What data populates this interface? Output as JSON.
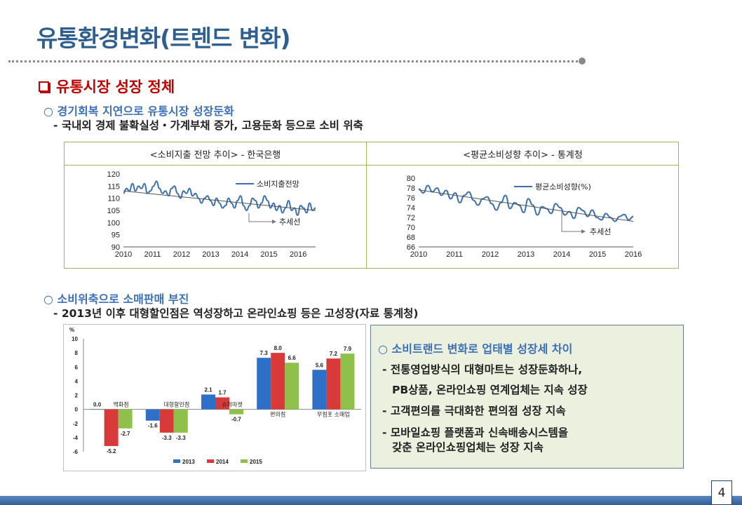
{
  "slide": {
    "title": "유통환경변화(트렌드 변화)",
    "page_number": "4"
  },
  "section": {
    "heading": "유통시장 성장 정체",
    "part1": {
      "heading": "○ 경기회복 지연으로 유통시장 성장둔화",
      "detail": "- 국내외 경제 불확실성・가계부채 증가, 고용둔화 등으로 소비 위축"
    },
    "part2": {
      "heading": "○ 소비위축으로 소매판매 부진",
      "detail": "- 2013년 이후 대형할인점은 역성장하고 온라인쇼핑 등은 고성장(자료 통계청)"
    }
  },
  "table_headers": [
    "<소비지출 전망 추이> - 한국은행",
    "<평균소비성향 추이> - 통계청"
  ],
  "info_box": {
    "heading": "○ 소비트랜드 변화로 업태별 성장세 차이",
    "lines": [
      "- 전통영업방식의 대형마트는 성장둔화하나,",
      "PB상품, 온라인쇼핑 연계업체는 지속 성장",
      "- 고객편의를 극대화한 편의점 성장 지속",
      "- 모바일쇼핑 플랫폼과 신속배송시스템을",
      "갖춘 온라인쇼핑업체는 성장 지속"
    ]
  },
  "colors": {
    "title": "#2f5f8f",
    "accent_red": "#c00000",
    "subhead_blue": "#3b6fb6",
    "line_series": "#3a6fb0",
    "bar_2013": "#2e6fc8",
    "bar_2014": "#d83a3a",
    "bar_2015": "#8fc04a"
  },
  "chart_data": [
    {
      "type": "line",
      "series": [
        {
          "name": "소비지출전망",
          "values": [
            112,
            114,
            113,
            116,
            113,
            115,
            114,
            116,
            112,
            113,
            115,
            117,
            114,
            112,
            113,
            111,
            114,
            115,
            112,
            110,
            113,
            112,
            114,
            111,
            112,
            110,
            108,
            110,
            111,
            109,
            107,
            110,
            108,
            106,
            107,
            110,
            108,
            106,
            109,
            111,
            107,
            105,
            107,
            110,
            109,
            106,
            108,
            111,
            109,
            106,
            108,
            105,
            107,
            104,
            106,
            109,
            105,
            106,
            103,
            107,
            106,
            104,
            108,
            105,
            106
          ]
        }
      ],
      "x_start": 2010,
      "x_end": 2016.6,
      "xticks": [
        "2010",
        "2011",
        "2012",
        "2013",
        "2014",
        "2015",
        "2016"
      ],
      "yticks": [
        "120",
        "115",
        "110",
        "105",
        "100",
        "95",
        "90"
      ],
      "ylim": [
        90,
        120
      ],
      "trend": {
        "from": 113,
        "to": 105
      },
      "trend_label": "추세선"
    },
    {
      "type": "line",
      "series": [
        {
          "name": "평균소비성향(%)",
          "values": [
            77.8,
            77,
            78.5,
            77.2,
            78,
            76.5,
            77.5,
            75.8,
            77,
            75,
            76.5,
            77.2,
            75.5,
            74.5,
            75.8,
            76.2,
            74.8,
            73.5,
            75,
            76.5,
            73.8,
            75,
            74.5,
            73,
            75.8,
            74.5,
            72.5,
            74.2,
            73.8,
            72.8,
            74.8,
            74,
            72.5,
            73.2,
            71.8,
            74,
            73.4,
            72.2,
            73.5,
            72,
            71.5,
            72.8,
            72,
            71.2,
            72.2,
            72.6,
            71.5,
            72.2
          ]
        }
      ],
      "x_start": 2010,
      "x_end": 2016,
      "xticks": [
        "2010",
        "2011",
        "2012",
        "2013",
        "2014",
        "2015",
        "2016"
      ],
      "yticks": [
        "80",
        "78",
        "76",
        "74",
        "72",
        "70",
        "68",
        "66"
      ],
      "ylim": [
        66,
        80
      ],
      "trend": {
        "from": 77.6,
        "to": 71.2
      },
      "trend_label": "추세선"
    },
    {
      "type": "bar",
      "yunit": "%",
      "ylim": [
        -6,
        10
      ],
      "yticks": [
        "10",
        "8",
        "6",
        "4",
        "2",
        "0",
        "-2",
        "-4",
        "-6"
      ],
      "categories": [
        "백화점",
        "대형할인점",
        "슈퍼마켓",
        "편의점",
        "무점포 소매업"
      ],
      "series": [
        {
          "name": "2013",
          "values": [
            0.0,
            -1.6,
            2.1,
            7.3,
            5.6
          ]
        },
        {
          "name": "2014",
          "values": [
            -5.2,
            -3.3,
            1.7,
            8.0,
            7.2
          ]
        },
        {
          "name": "2015",
          "values": [
            -2.7,
            -3.3,
            -0.7,
            6.6,
            7.9
          ]
        }
      ]
    }
  ]
}
